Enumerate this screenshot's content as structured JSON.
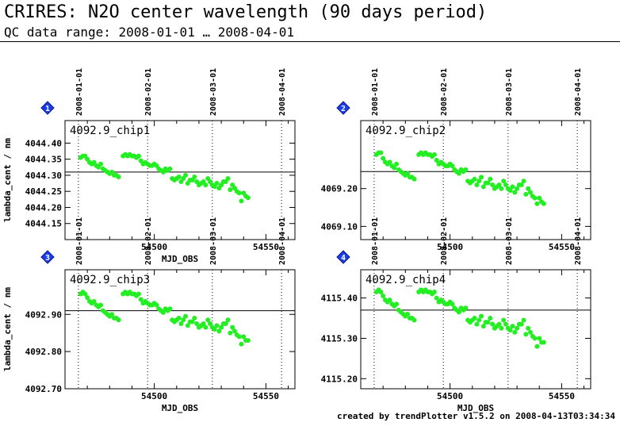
{
  "header": {
    "title": "CRIRES: N2O center wavelength (90 days period)",
    "subtitle": "QC data range: 2008-01-01 … 2008-04-01"
  },
  "footer": {
    "credit": "created by trendPlotter v1.5.2 on 2008-04-13T03:34:34"
  },
  "colors": {
    "points": "#22ee22",
    "badge": "#1a3df0",
    "axis": "#000000"
  },
  "chart_data": [
    {
      "type": "scatter",
      "id": "1",
      "label": "4092.9_chip1",
      "xlabel": "MJD_OBS",
      "ylabel": "lambda_cent / nm",
      "xlim": [
        54460,
        54563
      ],
      "ylim": [
        4044.1,
        4044.47
      ],
      "xticks": [
        54500,
        54550
      ],
      "yticks": [
        "4044.15",
        "4044.20",
        "4044.25",
        "4044.30",
        "4044.35",
        "4044.40"
      ],
      "reference": 4044.31,
      "date_markers": [
        {
          "label": "2008-01-01",
          "mjd": 54466
        },
        {
          "label": "2008-02-01",
          "mjd": 54497
        },
        {
          "label": "2008-03-01",
          "mjd": 54526
        },
        {
          "label": "2008-04-01",
          "mjd": 54557
        }
      ],
      "x": [
        54467,
        54468,
        54469,
        54470,
        54471,
        54472,
        54473,
        54474,
        54475,
        54476,
        54477,
        54478,
        54479,
        54480,
        54481,
        54482,
        54483,
        54484,
        54486,
        54487,
        54488,
        54489,
        54490,
        54491,
        54492,
        54493,
        54494,
        54495,
        54496,
        54497,
        54498,
        54499,
        54500,
        54501,
        54502,
        54503,
        54504,
        54505,
        54506,
        54507,
        54508,
        54509,
        54510,
        54511,
        54512,
        54513,
        54514,
        54515,
        54516,
        54517,
        54518,
        54519,
        54520,
        54521,
        54522,
        54523,
        54524,
        54525,
        54526,
        54527,
        54528,
        54529,
        54530,
        54531,
        54532,
        54533,
        54534,
        54535,
        54536,
        54537,
        54538,
        54539,
        54540,
        54541,
        54542
      ],
      "y": [
        4044.355,
        4044.36,
        4044.36,
        4044.35,
        4044.34,
        4044.335,
        4044.34,
        4044.33,
        4044.325,
        4044.335,
        4044.32,
        4044.315,
        4044.31,
        4044.305,
        4044.31,
        4044.3,
        4044.3,
        4044.295,
        4044.36,
        4044.365,
        4044.36,
        4044.365,
        4044.36,
        4044.36,
        4044.355,
        4044.36,
        4044.345,
        4044.335,
        4044.34,
        4044.335,
        4044.33,
        4044.33,
        4044.335,
        4044.33,
        4044.32,
        4044.315,
        4044.31,
        4044.32,
        4044.315,
        4044.32,
        4044.29,
        4044.285,
        4044.29,
        4044.295,
        4044.28,
        4044.29,
        4044.3,
        4044.275,
        4044.285,
        4044.285,
        4044.295,
        4044.28,
        4044.27,
        4044.275,
        4044.28,
        4044.27,
        4044.29,
        4044.28,
        4044.27,
        4044.265,
        4044.275,
        4044.26,
        4044.27,
        4044.28,
        4044.28,
        4044.29,
        4044.255,
        4044.27,
        4044.26,
        4044.25,
        4044.245,
        4044.22,
        4044.245,
        4044.235,
        4044.23
      ]
    },
    {
      "type": "scatter",
      "id": "2",
      "label": "4092.9_chip2",
      "xlabel": "",
      "ylabel": "",
      "xlim": [
        54460,
        54563
      ],
      "ylim": [
        4069.065,
        4069.38
      ],
      "xticks": [
        54500,
        54550
      ],
      "yticks": [
        "4069.10",
        "4069.20"
      ],
      "reference": 4069.245,
      "date_markers": [
        {
          "label": "2008-01-01",
          "mjd": 54466
        },
        {
          "label": "2008-02-01",
          "mjd": 54497
        },
        {
          "label": "2008-03-01",
          "mjd": 54526
        },
        {
          "label": "2008-04-01",
          "mjd": 54557
        }
      ],
      "x": [
        54467,
        54468,
        54469,
        54470,
        54471,
        54472,
        54473,
        54474,
        54475,
        54476,
        54477,
        54478,
        54479,
        54480,
        54481,
        54482,
        54483,
        54484,
        54486,
        54487,
        54488,
        54489,
        54490,
        54491,
        54492,
        54493,
        54494,
        54495,
        54496,
        54497,
        54498,
        54499,
        54500,
        54501,
        54502,
        54503,
        54504,
        54505,
        54506,
        54507,
        54508,
        54509,
        54510,
        54511,
        54512,
        54513,
        54514,
        54515,
        54516,
        54517,
        54518,
        54519,
        54520,
        54521,
        54522,
        54523,
        54524,
        54525,
        54526,
        54527,
        54528,
        54529,
        54530,
        54531,
        54532,
        54533,
        54534,
        54535,
        54536,
        54537,
        54538,
        54539,
        54540,
        54541,
        54542
      ],
      "y": [
        4069.29,
        4069.295,
        4069.295,
        4069.28,
        4069.27,
        4069.265,
        4069.27,
        4069.26,
        4069.255,
        4069.265,
        4069.25,
        4069.245,
        4069.24,
        4069.235,
        4069.24,
        4069.23,
        4069.23,
        4069.225,
        4069.29,
        4069.295,
        4069.29,
        4069.295,
        4069.29,
        4069.29,
        4069.285,
        4069.29,
        4069.275,
        4069.265,
        4069.27,
        4069.265,
        4069.26,
        4069.26,
        4069.265,
        4069.26,
        4069.25,
        4069.245,
        4069.24,
        4069.25,
        4069.245,
        4069.25,
        4069.22,
        4069.215,
        4069.22,
        4069.225,
        4069.21,
        4069.22,
        4069.23,
        4069.205,
        4069.215,
        4069.215,
        4069.225,
        4069.21,
        4069.2,
        4069.205,
        4069.21,
        4069.2,
        4069.22,
        4069.21,
        4069.2,
        4069.195,
        4069.205,
        4069.19,
        4069.2,
        4069.21,
        4069.21,
        4069.22,
        4069.185,
        4069.2,
        4069.19,
        4069.18,
        4069.175,
        4069.16,
        4069.175,
        4069.165,
        4069.16
      ]
    },
    {
      "type": "scatter",
      "id": "3",
      "label": "4092.9_chip3",
      "xlabel": "MJD_OBS",
      "ylabel": "lambda_cent / nm",
      "xlim": [
        54460,
        54563
      ],
      "ylim": [
        4092.7,
        4093.02
      ],
      "xticks": [
        54500,
        54550
      ],
      "yticks": [
        "4092.70",
        "4092.80",
        "4092.90"
      ],
      "reference": 4092.91,
      "date_markers": [
        {
          "label": "2008-01-01",
          "mjd": 54466
        },
        {
          "label": "2008-02-01",
          "mjd": 54497
        },
        {
          "label": "2008-03-01",
          "mjd": 54526
        },
        {
          "label": "2008-04-01",
          "mjd": 54557
        }
      ],
      "x": [
        54467,
        54468,
        54469,
        54470,
        54471,
        54472,
        54473,
        54474,
        54475,
        54476,
        54477,
        54478,
        54479,
        54480,
        54481,
        54482,
        54483,
        54484,
        54486,
        54487,
        54488,
        54489,
        54490,
        54491,
        54492,
        54493,
        54494,
        54495,
        54496,
        54497,
        54498,
        54499,
        54500,
        54501,
        54502,
        54503,
        54504,
        54505,
        54506,
        54507,
        54508,
        54509,
        54510,
        54511,
        54512,
        54513,
        54514,
        54515,
        54516,
        54517,
        54518,
        54519,
        54520,
        54521,
        54522,
        54523,
        54524,
        54525,
        54526,
        54527,
        54528,
        54529,
        54530,
        54531,
        54532,
        54533,
        54534,
        54535,
        54536,
        54537,
        54538,
        54539,
        54540,
        54541,
        54542
      ],
      "y": [
        4092.955,
        4092.96,
        4092.955,
        4092.945,
        4092.935,
        4092.93,
        4092.935,
        4092.925,
        4092.92,
        4092.925,
        4092.91,
        4092.905,
        4092.9,
        4092.895,
        4092.9,
        4092.89,
        4092.89,
        4092.885,
        4092.955,
        4092.96,
        4092.955,
        4092.96,
        4092.955,
        4092.955,
        4092.95,
        4092.955,
        4092.94,
        4092.93,
        4092.935,
        4092.93,
        4092.925,
        4092.925,
        4092.93,
        4092.925,
        4092.915,
        4092.91,
        4092.905,
        4092.915,
        4092.91,
        4092.915,
        4092.885,
        4092.88,
        4092.885,
        4092.89,
        4092.875,
        4092.885,
        4092.895,
        4092.87,
        4092.88,
        4092.88,
        4092.89,
        4092.875,
        4092.865,
        4092.87,
        4092.875,
        4092.865,
        4092.885,
        4092.875,
        4092.865,
        4092.86,
        4092.87,
        4092.855,
        4092.865,
        4092.875,
        4092.875,
        4092.885,
        4092.85,
        4092.865,
        4092.855,
        4092.845,
        4092.84,
        4092.82,
        4092.84,
        4092.83,
        4092.83
      ]
    },
    {
      "type": "scatter",
      "id": "4",
      "label": "4092.9_chip4",
      "xlabel": "MJD_OBS",
      "ylabel": "",
      "xlim": [
        54460,
        54563
      ],
      "ylim": [
        4115.175,
        4115.47
      ],
      "xticks": [
        54500,
        54550
      ],
      "yticks": [
        "4115.20",
        "4115.30",
        "4115.40"
      ],
      "reference": 4115.37,
      "date_markers": [
        {
          "label": "2008-01-01",
          "mjd": 54466
        },
        {
          "label": "2008-02-01",
          "mjd": 54497
        },
        {
          "label": "2008-03-01",
          "mjd": 54526
        },
        {
          "label": "2008-04-01",
          "mjd": 54557
        }
      ],
      "x": [
        54467,
        54468,
        54469,
        54470,
        54471,
        54472,
        54473,
        54474,
        54475,
        54476,
        54477,
        54478,
        54479,
        54480,
        54481,
        54482,
        54483,
        54484,
        54486,
        54487,
        54488,
        54489,
        54490,
        54491,
        54492,
        54493,
        54494,
        54495,
        54496,
        54497,
        54498,
        54499,
        54500,
        54501,
        54502,
        54503,
        54504,
        54505,
        54506,
        54507,
        54508,
        54509,
        54510,
        54511,
        54512,
        54513,
        54514,
        54515,
        54516,
        54517,
        54518,
        54519,
        54520,
        54521,
        54522,
        54523,
        54524,
        54525,
        54526,
        54527,
        54528,
        54529,
        54530,
        54531,
        54532,
        54533,
        54534,
        54535,
        54536,
        54537,
        54538,
        54539,
        54540,
        54541,
        54542
      ],
      "y": [
        4115.415,
        4115.42,
        4115.415,
        4115.405,
        4115.395,
        4115.39,
        4115.395,
        4115.385,
        4115.38,
        4115.385,
        4115.37,
        4115.365,
        4115.36,
        4115.355,
        4115.36,
        4115.35,
        4115.35,
        4115.345,
        4115.415,
        4115.42,
        4115.415,
        4115.42,
        4115.415,
        4115.415,
        4115.41,
        4115.415,
        4115.4,
        4115.39,
        4115.395,
        4115.39,
        4115.385,
        4115.385,
        4115.39,
        4115.385,
        4115.375,
        4115.37,
        4115.365,
        4115.375,
        4115.37,
        4115.375,
        4115.345,
        4115.34,
        4115.345,
        4115.35,
        4115.335,
        4115.345,
        4115.355,
        4115.33,
        4115.34,
        4115.34,
        4115.35,
        4115.335,
        4115.325,
        4115.33,
        4115.335,
        4115.325,
        4115.345,
        4115.335,
        4115.325,
        4115.32,
        4115.33,
        4115.315,
        4115.325,
        4115.335,
        4115.335,
        4115.345,
        4115.31,
        4115.325,
        4115.315,
        4115.305,
        4115.3,
        4115.28,
        4115.3,
        4115.29,
        4115.29
      ]
    }
  ]
}
